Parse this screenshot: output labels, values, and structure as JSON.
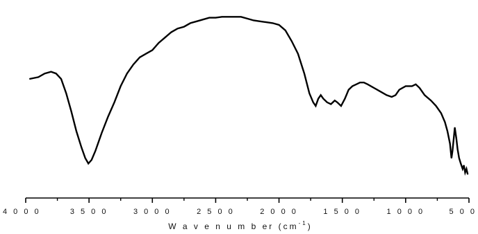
{
  "chart_data": {
    "type": "line",
    "title": "",
    "xlabel": "W a v e n u m b er (cm",
    "xlabel_exp": "-1",
    "xlabel_close": ")",
    "ylabel": "",
    "xlim": [
      4000,
      500
    ],
    "x_reversed": true,
    "y_axis_visible": false,
    "grid": false,
    "legend": "none",
    "line_color": "#000000",
    "ticks": {
      "major": [
        4000,
        3500,
        3000,
        2500,
        2000,
        1500,
        1000,
        500
      ],
      "labels": [
        "4 0 0 0",
        "3 5 0 0",
        "3 0 0 0",
        "2 5 0 0",
        "2 0 0 0",
        "1 5 0 0",
        "1 0 0 0",
        "5 0 0"
      ],
      "minor": [
        3750,
        3250,
        2750,
        2250,
        1750,
        1250,
        750
      ]
    },
    "series": [
      {
        "points": [
          [
            3970,
            0.6
          ],
          [
            3900,
            0.61
          ],
          [
            3850,
            0.63
          ],
          [
            3800,
            0.64
          ],
          [
            3760,
            0.63
          ],
          [
            3720,
            0.6
          ],
          [
            3680,
            0.52
          ],
          [
            3640,
            0.42
          ],
          [
            3600,
            0.31
          ],
          [
            3560,
            0.22
          ],
          [
            3530,
            0.16
          ],
          [
            3505,
            0.13
          ],
          [
            3480,
            0.15
          ],
          [
            3450,
            0.2
          ],
          [
            3400,
            0.3
          ],
          [
            3350,
            0.39
          ],
          [
            3300,
            0.47
          ],
          [
            3250,
            0.56
          ],
          [
            3200,
            0.63
          ],
          [
            3150,
            0.68
          ],
          [
            3100,
            0.72
          ],
          [
            3050,
            0.74
          ],
          [
            3000,
            0.76
          ],
          [
            2950,
            0.8
          ],
          [
            2900,
            0.83
          ],
          [
            2850,
            0.86
          ],
          [
            2800,
            0.88
          ],
          [
            2750,
            0.89
          ],
          [
            2700,
            0.91
          ],
          [
            2650,
            0.92
          ],
          [
            2600,
            0.93
          ],
          [
            2550,
            0.94
          ],
          [
            2500,
            0.94
          ],
          [
            2450,
            0.945
          ],
          [
            2400,
            0.945
          ],
          [
            2350,
            0.945
          ],
          [
            2300,
            0.945
          ],
          [
            2250,
            0.935
          ],
          [
            2200,
            0.925
          ],
          [
            2150,
            0.92
          ],
          [
            2100,
            0.915
          ],
          [
            2050,
            0.91
          ],
          [
            2000,
            0.9
          ],
          [
            1950,
            0.87
          ],
          [
            1900,
            0.81
          ],
          [
            1850,
            0.74
          ],
          [
            1800,
            0.63
          ],
          [
            1760,
            0.52
          ],
          [
            1730,
            0.47
          ],
          [
            1710,
            0.45
          ],
          [
            1690,
            0.49
          ],
          [
            1670,
            0.51
          ],
          [
            1650,
            0.49
          ],
          [
            1620,
            0.47
          ],
          [
            1590,
            0.46
          ],
          [
            1560,
            0.48
          ],
          [
            1540,
            0.47
          ],
          [
            1510,
            0.45
          ],
          [
            1480,
            0.49
          ],
          [
            1450,
            0.54
          ],
          [
            1420,
            0.56
          ],
          [
            1390,
            0.57
          ],
          [
            1360,
            0.58
          ],
          [
            1330,
            0.58
          ],
          [
            1300,
            0.57
          ],
          [
            1250,
            0.55
          ],
          [
            1200,
            0.53
          ],
          [
            1150,
            0.51
          ],
          [
            1110,
            0.5
          ],
          [
            1080,
            0.51
          ],
          [
            1050,
            0.54
          ],
          [
            1000,
            0.56
          ],
          [
            950,
            0.56
          ],
          [
            920,
            0.57
          ],
          [
            890,
            0.55
          ],
          [
            850,
            0.51
          ],
          [
            800,
            0.48
          ],
          [
            760,
            0.45
          ],
          [
            720,
            0.41
          ],
          [
            690,
            0.36
          ],
          [
            670,
            0.31
          ],
          [
            650,
            0.24
          ],
          [
            638,
            0.16
          ],
          [
            630,
            0.2
          ],
          [
            620,
            0.27
          ],
          [
            612,
            0.33
          ],
          [
            600,
            0.27
          ],
          [
            590,
            0.21
          ],
          [
            578,
            0.16
          ],
          [
            565,
            0.13
          ],
          [
            550,
            0.1
          ],
          [
            540,
            0.12
          ],
          [
            530,
            0.08
          ],
          [
            520,
            0.1
          ],
          [
            510,
            0.07
          ]
        ]
      }
    ]
  }
}
